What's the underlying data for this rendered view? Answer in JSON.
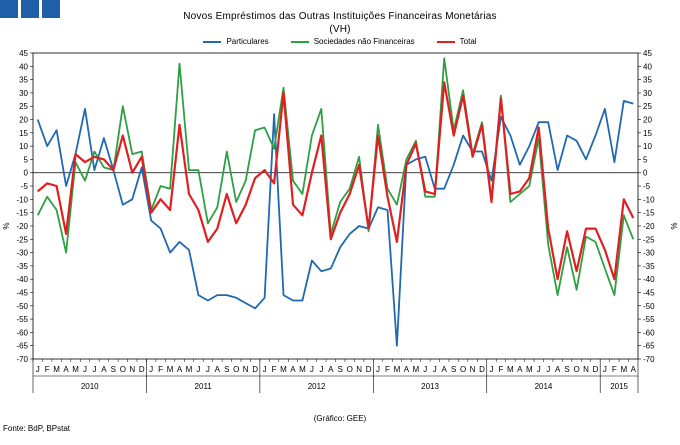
{
  "chart_data": {
    "type": "line",
    "title": "Novos Empréstimos das Outras Instituições Financeiras Monetárias",
    "subtitle": "(VH)",
    "ylabel_left": "%",
    "ylabel_right": "%",
    "ylim": [
      -70,
      45
    ],
    "yticks": [
      45,
      40,
      35,
      30,
      25,
      20,
      15,
      10,
      5,
      0,
      -5,
      -10,
      -15,
      -20,
      -25,
      -30,
      -35,
      -40,
      -45,
      -50,
      -55,
      -60,
      -65,
      -70
    ],
    "month_letters": [
      "J",
      "F",
      "M",
      "A",
      "M",
      "J",
      "J",
      "A",
      "S",
      "O",
      "N",
      "D",
      "J",
      "F",
      "M",
      "A",
      "M",
      "J",
      "J",
      "A",
      "S",
      "O",
      "N",
      "D",
      "J",
      "F",
      "M",
      "A",
      "M",
      "J",
      "J",
      "A",
      "S",
      "O",
      "N",
      "D",
      "J",
      "F",
      "M",
      "A",
      "M",
      "J",
      "J",
      "A",
      "S",
      "O",
      "N",
      "D",
      "J",
      "F",
      "M",
      "A",
      "M",
      "J",
      "J",
      "A",
      "S",
      "O",
      "N",
      "D",
      "J",
      "F",
      "M",
      "A"
    ],
    "years": [
      {
        "label": "2010",
        "months": 12
      },
      {
        "label": "2011",
        "months": 12
      },
      {
        "label": "2012",
        "months": 12
      },
      {
        "label": "2013",
        "months": 12
      },
      {
        "label": "2014",
        "months": 12
      },
      {
        "label": "2015",
        "months": 4
      }
    ],
    "series": [
      {
        "name": "Particulares",
        "color": "#2069b0",
        "values": [
          20,
          10,
          16,
          -5,
          7,
          24,
          1,
          13,
          1,
          -12,
          -10,
          2,
          -18,
          -21,
          -30,
          -26,
          -29,
          -46,
          -48,
          -46,
          -46,
          -47,
          -49,
          -51,
          -47,
          22,
          -46,
          -48,
          -48,
          -33,
          -37,
          -36,
          -28,
          -23,
          -20,
          -21,
          -13,
          -14,
          -65,
          3,
          5,
          6,
          -6,
          -6,
          3,
          14,
          8,
          8,
          -3,
          21,
          14,
          3,
          10,
          19,
          19,
          1,
          14,
          12,
          5,
          14,
          24,
          4,
          27,
          26
        ]
      },
      {
        "name": "Sociedades não Financeiras",
        "color": "#2ea043",
        "values": [
          -16,
          -9,
          -14,
          -30,
          4,
          -3,
          8,
          2,
          1,
          25,
          7,
          8,
          -14,
          -5,
          -6,
          41,
          1,
          1,
          -19,
          -13,
          8,
          -11,
          -3,
          16,
          17,
          9,
          32,
          -3,
          -8,
          14,
          24,
          -23,
          -11,
          -6,
          6,
          -22,
          18,
          -6,
          -12,
          5,
          12,
          -9,
          -9,
          43,
          16,
          31,
          7,
          19,
          -10,
          29,
          -11,
          -8,
          -5,
          13,
          -27,
          -46,
          -28,
          -44,
          -24,
          -26,
          -36,
          -46,
          -16,
          -25
        ]
      },
      {
        "name": "Total",
        "color": "#e02020",
        "values": [
          -7,
          -4,
          -5,
          -23,
          7,
          4,
          6,
          5,
          1,
          14,
          0,
          6,
          -15,
          -10,
          -14,
          18,
          -8,
          -14,
          -26,
          -21,
          -8,
          -19,
          -12,
          -2,
          1,
          -4,
          30,
          -12,
          -16,
          0,
          14,
          -25,
          -15,
          -8,
          3,
          -21,
          14,
          -9,
          -26,
          3,
          11,
          -7,
          -8,
          34,
          14,
          29,
          6,
          18,
          -11,
          28,
          -8,
          -7,
          -2,
          17,
          -21,
          -40,
          -22,
          -37,
          -21,
          -21,
          -29,
          -40,
          -10,
          -17
        ]
      }
    ]
  },
  "footer": {
    "source": "Fonte: BdP, BPstat",
    "credit": "(Gráfico: GEE)"
  }
}
